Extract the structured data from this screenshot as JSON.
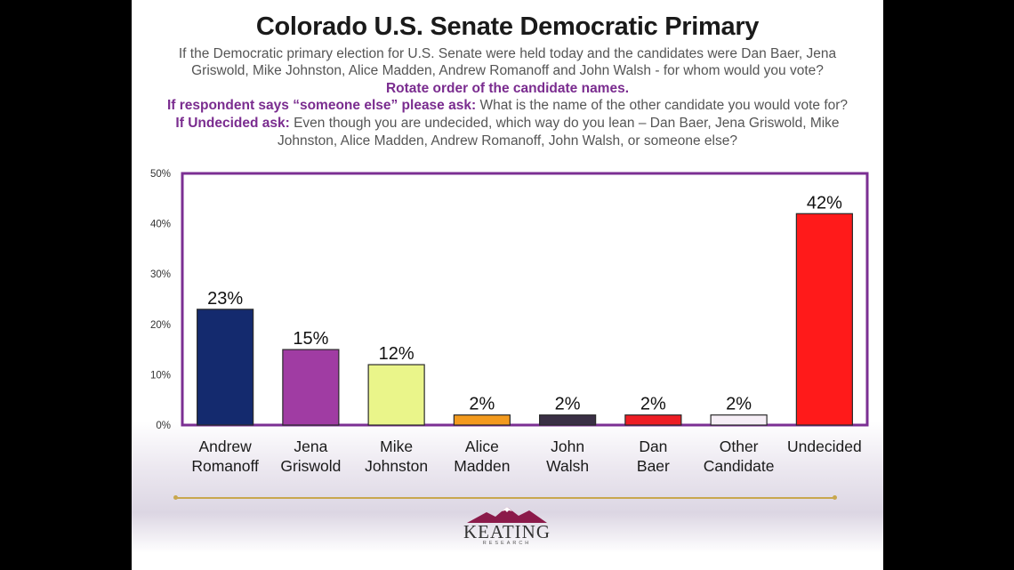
{
  "slide": {
    "title": "Colorado U.S. Senate Democratic Primary",
    "question_line1": "If the Democratic primary election for U.S. Senate were held today and the candidates were Dan Baer, Jena",
    "question_line2": "Griswold, Mike Johnston, Alice Madden, Andrew Romanoff and John Walsh - for whom would you vote?",
    "rotate_note": "Rotate order of the candidate names.",
    "someone_else_label": "If respondent says “someone else” please ask:",
    "someone_else_text": " What is the name of the other candidate you would vote for?",
    "undecided_label": "If Undecided ask:",
    "undecided_text_line1": " Even though you are undecided, which way do you lean – Dan Baer, Jena Griswold, Mike",
    "undecided_text_line2": "Johnston, Alice Madden, Andrew Romanoff, John Walsh, or someone else?"
  },
  "logo": {
    "name": "KEATING",
    "sub": "RESEARCH"
  },
  "colors": {
    "accent_purple": "#7a2c8f",
    "divider_gold": "#c8a74e",
    "axis_frame": "#7b2f93"
  },
  "chart_data": {
    "type": "bar",
    "title": "",
    "xlabel": "",
    "ylabel": "",
    "ylim": [
      0,
      50
    ],
    "yticks": [
      "0%",
      "10%",
      "20%",
      "30%",
      "40%",
      "50%"
    ],
    "grid": false,
    "categories": [
      [
        "Andrew",
        "Romanoff"
      ],
      [
        "Jena",
        "Griswold"
      ],
      [
        "Mike",
        "Johnston"
      ],
      [
        "Alice",
        "Madden"
      ],
      [
        "John",
        "Walsh"
      ],
      [
        "Dan",
        "Baer"
      ],
      [
        "Other",
        "Candidate"
      ],
      [
        "Undecided"
      ]
    ],
    "values": [
      23,
      15,
      12,
      2,
      2,
      2,
      2,
      42
    ],
    "data_labels": [
      "23%",
      "15%",
      "12%",
      "2%",
      "2%",
      "2%",
      "2%",
      "42%"
    ],
    "bar_colors": [
      "#142a6e",
      "#a03ca3",
      "#eaf58a",
      "#f39a1e",
      "#3a2f45",
      "#ee1d24",
      "#f6eef6",
      "#ff1a1a"
    ]
  }
}
